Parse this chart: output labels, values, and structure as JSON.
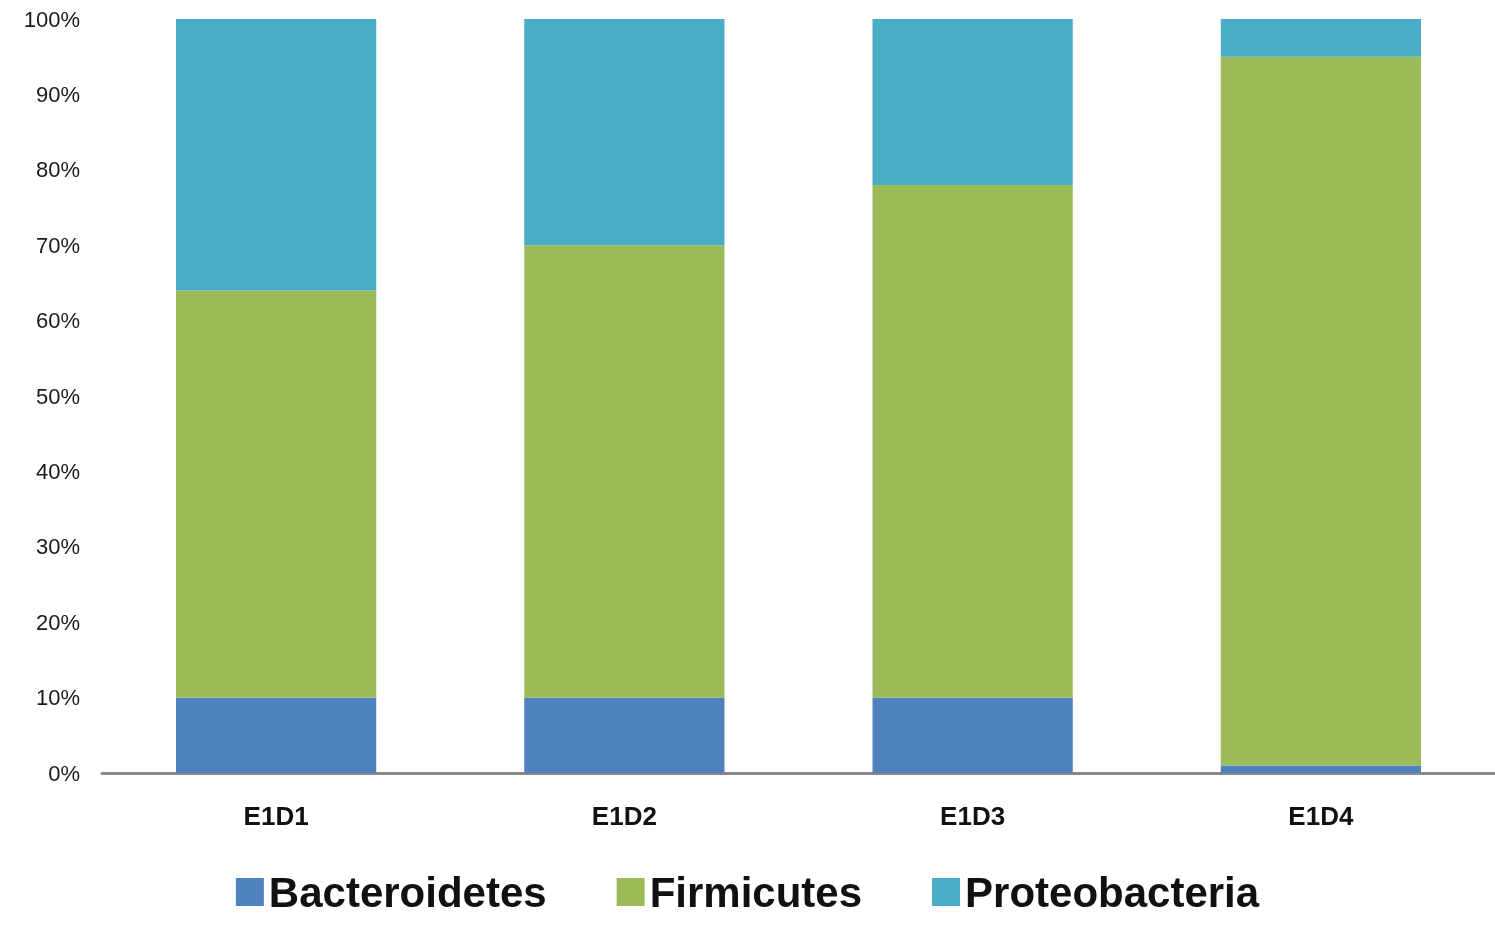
{
  "chart_data": {
    "type": "bar",
    "stacked": true,
    "categories": [
      "E1D1",
      "E1D2",
      "E1D3",
      "E1D4"
    ],
    "series": [
      {
        "name": "Bacteroidetes",
        "color": "#4f81bd",
        "values": [
          10,
          10,
          10,
          1
        ]
      },
      {
        "name": "Firmicutes",
        "color": "#9bbb59",
        "values": [
          54,
          60,
          68,
          94
        ]
      },
      {
        "name": "Proteobacteria",
        "color": "#4bacc6",
        "values": [
          36,
          30,
          22,
          5
        ]
      }
    ],
    "ylim": [
      0,
      100
    ],
    "yticks": [
      {
        "value": 0,
        "label": "0%"
      },
      {
        "value": 10,
        "label": "10%"
      },
      {
        "value": 20,
        "label": "20%"
      },
      {
        "value": 30,
        "label": "30%"
      },
      {
        "value": 40,
        "label": "40%"
      },
      {
        "value": 50,
        "label": "50%"
      },
      {
        "value": 60,
        "label": "60%"
      },
      {
        "value": 70,
        "label": "70%"
      },
      {
        "value": 80,
        "label": "80%"
      },
      {
        "value": 90,
        "label": "90%"
      },
      {
        "value": 100,
        "label": "100%"
      }
    ],
    "grid": false,
    "legend": "bottom"
  }
}
